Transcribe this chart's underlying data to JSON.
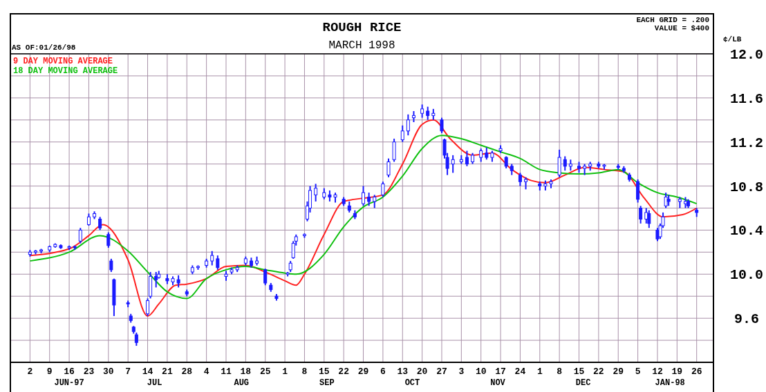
{
  "chart_data": {
    "type": "candlestick",
    "title": "ROUGH RICE",
    "subtitle": "MARCH 1998",
    "ylabel": "¢/LB",
    "color": "#1a1aff",
    "annotations": [
      "AS OF:01/26/98",
      "EACH GRID = .200",
      "VALUE = $400",
      "JUN-97",
      "JUL",
      "AUG",
      "SEP",
      "OCT",
      "NOV",
      "DEC",
      "JAN-98"
    ],
    "x": [
      "1997-06-02",
      "1997-06-04",
      "1997-06-06",
      "1997-06-09",
      "1997-06-11",
      "1997-06-13",
      "1997-06-16",
      "1997-06-18",
      "1997-06-20",
      "1997-06-23",
      "1997-06-25",
      "1997-06-27",
      "1997-06-30",
      "1997-07-01",
      "1997-07-02",
      "1997-07-07",
      "1997-07-08",
      "1997-07-09",
      "1997-07-10",
      "1997-07-14",
      "1997-07-15",
      "1997-07-17",
      "1997-07-18",
      "1997-07-21",
      "1997-07-23",
      "1997-07-25",
      "1997-07-28",
      "1997-07-30",
      "1997-08-01",
      "1997-08-04",
      "1997-08-06",
      "1997-08-08",
      "1997-08-11",
      "1997-08-13",
      "1997-08-15",
      "1997-08-18",
      "1997-08-20",
      "1997-08-22",
      "1997-08-25",
      "1997-08-27",
      "1997-08-29",
      "1997-09-02",
      "1997-09-03",
      "1997-09-04",
      "1997-09-05",
      "1997-09-08",
      "1997-09-09",
      "1997-09-10",
      "1997-09-12",
      "1997-09-15",
      "1997-09-17",
      "1997-09-19",
      "1997-09-22",
      "1997-09-24",
      "1997-09-26",
      "1997-09-29",
      "1997-10-01",
      "1997-10-03",
      "1997-10-06",
      "1997-10-08",
      "1997-10-10",
      "1997-10-13",
      "1997-10-15",
      "1997-10-17",
      "1997-10-20",
      "1997-10-22",
      "1997-10-24",
      "1997-10-27",
      "1997-10-28",
      "1997-10-29",
      "1997-10-31",
      "1997-11-03",
      "1997-11-05",
      "1997-11-07",
      "1997-11-10",
      "1997-11-12",
      "1997-11-14",
      "1997-11-17",
      "1997-11-19",
      "1997-11-21",
      "1997-11-24",
      "1997-11-26",
      "1997-12-01",
      "1997-12-03",
      "1997-12-05",
      "1997-12-08",
      "1997-12-10",
      "1997-12-12",
      "1997-12-15",
      "1997-12-17",
      "1997-12-19",
      "1997-12-22",
      "1997-12-24",
      "1997-12-29",
      "1997-12-31",
      "1998-01-02",
      "1998-01-05",
      "1998-01-06",
      "1998-01-08",
      "1998-01-09",
      "1998-01-12",
      "1998-01-13",
      "1998-01-14",
      "1998-01-15",
      "1998-01-16",
      "1998-01-20",
      "1998-01-22",
      "1998-01-23",
      "1998-01-26"
    ],
    "ohlc": [
      [
        10.18,
        10.22,
        10.16,
        10.2
      ],
      [
        10.2,
        10.22,
        10.18,
        10.21
      ],
      [
        10.21,
        10.23,
        10.19,
        10.22
      ],
      [
        10.22,
        10.26,
        10.2,
        10.25
      ],
      [
        10.25,
        10.28,
        10.24,
        10.27
      ],
      [
        10.26,
        10.27,
        10.23,
        10.24
      ],
      [
        10.24,
        10.26,
        10.22,
        10.25
      ],
      [
        10.25,
        10.26,
        10.22,
        10.24
      ],
      [
        10.3,
        10.42,
        10.28,
        10.4
      ],
      [
        10.45,
        10.55,
        10.44,
        10.52
      ],
      [
        10.52,
        10.57,
        10.5,
        10.55
      ],
      [
        10.5,
        10.52,
        10.4,
        10.42
      ],
      [
        10.36,
        10.38,
        10.24,
        10.26
      ],
      [
        10.12,
        10.14,
        10.02,
        10.04
      ],
      [
        9.95,
        9.96,
        9.62,
        9.72
      ],
      [
        9.74,
        9.76,
        9.7,
        9.73
      ],
      [
        9.62,
        9.64,
        9.56,
        9.58
      ],
      [
        9.52,
        9.53,
        9.46,
        9.48
      ],
      [
        9.45,
        9.47,
        9.35,
        9.38
      ],
      [
        9.64,
        9.78,
        9.62,
        9.76
      ],
      [
        9.8,
        10.02,
        9.78,
        9.98
      ],
      [
        9.98,
        10.02,
        9.88,
        9.95
      ],
      [
        9.97,
        10.03,
        9.96,
        10.0
      ],
      [
        9.96,
        10.0,
        9.91,
        9.94
      ],
      [
        9.93,
        9.98,
        9.9,
        9.96
      ],
      [
        9.95,
        9.99,
        9.88,
        9.92
      ],
      [
        9.84,
        9.86,
        9.8,
        9.82
      ],
      [
        10.02,
        10.08,
        10.0,
        10.06
      ],
      [
        10.06,
        10.08,
        10.04,
        10.07
      ],
      [
        10.08,
        10.14,
        10.06,
        10.12
      ],
      [
        10.12,
        10.21,
        10.08,
        10.17
      ],
      [
        10.14,
        10.17,
        10.04,
        10.06
      ],
      [
        9.98,
        10.03,
        9.94,
        10.0
      ],
      [
        10.02,
        10.06,
        10.0,
        10.04
      ],
      [
        10.04,
        10.08,
        10.02,
        10.06
      ],
      [
        10.1,
        10.16,
        10.08,
        10.14
      ],
      [
        10.12,
        10.15,
        10.06,
        10.08
      ],
      [
        10.1,
        10.16,
        10.08,
        10.12
      ],
      [
        10.04,
        10.05,
        9.9,
        9.92
      ],
      [
        9.9,
        9.92,
        9.84,
        9.86
      ],
      [
        9.8,
        9.82,
        9.76,
        9.78
      ],
      [
        10.0,
        10.02,
        9.98,
        10.01
      ],
      [
        10.04,
        10.12,
        10.02,
        10.1
      ],
      [
        10.15,
        10.3,
        10.14,
        10.28
      ],
      [
        10.3,
        10.36,
        10.26,
        10.34
      ],
      [
        10.35,
        10.37,
        10.33,
        10.36
      ],
      [
        10.5,
        10.66,
        10.48,
        10.62
      ],
      [
        10.6,
        10.8,
        10.56,
        10.76
      ],
      [
        10.72,
        10.82,
        10.66,
        10.78
      ],
      [
        10.7,
        10.78,
        10.68,
        10.74
      ],
      [
        10.72,
        10.76,
        10.66,
        10.7
      ],
      [
        10.7,
        10.74,
        10.65,
        10.72
      ],
      [
        10.68,
        10.7,
        10.62,
        10.64
      ],
      [
        10.62,
        10.66,
        10.56,
        10.58
      ],
      [
        10.55,
        10.58,
        10.5,
        10.52
      ],
      [
        10.64,
        10.8,
        10.62,
        10.74
      ],
      [
        10.7,
        10.74,
        10.62,
        10.66
      ],
      [
        10.66,
        10.72,
        10.6,
        10.7
      ],
      [
        10.72,
        10.84,
        10.7,
        10.82
      ],
      [
        10.9,
        11.05,
        10.88,
        11.02
      ],
      [
        11.04,
        11.23,
        11.02,
        11.2
      ],
      [
        11.22,
        11.35,
        11.2,
        11.3
      ],
      [
        11.3,
        11.45,
        11.26,
        11.4
      ],
      [
        11.42,
        11.48,
        11.38,
        11.44
      ],
      [
        11.46,
        11.54,
        11.42,
        11.5
      ],
      [
        11.48,
        11.52,
        11.4,
        11.44
      ],
      [
        11.44,
        11.5,
        11.4,
        11.46
      ],
      [
        11.4,
        11.42,
        11.28,
        11.3
      ],
      [
        11.22,
        11.23,
        11.05,
        11.08
      ],
      [
        11.06,
        11.1,
        10.9,
        10.96
      ],
      [
        11.0,
        11.08,
        10.92,
        11.04
      ],
      [
        11.02,
        11.08,
        11.0,
        11.04
      ],
      [
        11.06,
        11.12,
        10.98,
        11.0
      ],
      [
        11.02,
        11.1,
        11.0,
        11.08
      ],
      [
        11.06,
        11.14,
        11.02,
        11.12
      ],
      [
        11.1,
        11.15,
        11.04,
        11.06
      ],
      [
        11.06,
        11.12,
        11.02,
        11.1
      ],
      [
        11.12,
        11.17,
        11.1,
        11.14
      ],
      [
        11.06,
        11.07,
        10.96,
        10.98
      ],
      [
        10.98,
        11.0,
        10.9,
        10.94
      ],
      [
        10.9,
        10.92,
        10.8,
        10.84
      ],
      [
        10.84,
        10.88,
        10.77,
        10.86
      ],
      [
        10.82,
        10.84,
        10.76,
        10.8
      ],
      [
        10.8,
        10.85,
        10.76,
        10.82
      ],
      [
        10.82,
        10.86,
        10.78,
        10.84
      ],
      [
        10.9,
        11.13,
        10.88,
        11.06
      ],
      [
        11.04,
        11.07,
        10.94,
        10.98
      ],
      [
        10.98,
        11.04,
        10.94,
        11.0
      ],
      [
        10.98,
        11.02,
        10.92,
        10.96
      ],
      [
        10.96,
        11.0,
        10.9,
        10.98
      ],
      [
        10.98,
        11.02,
        10.94,
        11.0
      ],
      [
        11.0,
        11.02,
        10.96,
        10.98
      ],
      [
        10.98,
        11.0,
        10.95,
        10.99
      ],
      [
        10.98,
        11.0,
        10.95,
        10.97
      ],
      [
        10.96,
        10.98,
        10.92,
        10.94
      ],
      [
        10.9,
        10.92,
        10.84,
        10.86
      ],
      [
        10.84,
        10.86,
        10.65,
        10.68
      ],
      [
        10.6,
        10.62,
        10.46,
        10.5
      ],
      [
        10.5,
        10.6,
        10.46,
        10.56
      ],
      [
        10.55,
        10.58,
        10.42,
        10.46
      ],
      [
        10.4,
        10.42,
        10.3,
        10.32
      ],
      [
        10.34,
        10.46,
        10.32,
        10.44
      ],
      [
        10.44,
        10.56,
        10.42,
        10.52
      ],
      [
        10.62,
        10.74,
        10.6,
        10.7
      ],
      [
        10.68,
        10.72,
        10.62,
        10.66
      ],
      [
        10.66,
        10.7,
        10.6,
        10.68
      ],
      [
        10.64,
        10.7,
        10.6,
        10.66
      ],
      [
        10.66,
        10.68,
        10.6,
        10.62
      ],
      [
        10.58,
        10.6,
        10.52,
        10.56
      ]
    ],
    "series": [
      {
        "type": "line",
        "name": "9 DAY MOVING AVERAGE",
        "color": "#ff2020",
        "x": [
          "1997-06-02",
          "1997-06-16",
          "1997-06-23",
          "1997-06-28",
          "1997-07-07",
          "1997-07-14",
          "1997-07-18",
          "1997-07-24",
          "1997-07-28",
          "1997-08-04",
          "1997-08-11",
          "1997-08-18",
          "1997-08-25",
          "1997-09-01",
          "1997-09-05",
          "1997-09-08",
          "1997-09-15",
          "1997-09-22",
          "1997-09-29",
          "1997-10-06",
          "1997-10-13",
          "1997-10-20",
          "1997-10-24",
          "1997-10-30",
          "1997-11-07",
          "1997-11-14",
          "1997-11-21",
          "1997-11-28",
          "1997-12-03",
          "1997-12-10",
          "1997-12-17",
          "1997-12-24",
          "1997-12-31",
          "1998-01-07",
          "1998-01-14",
          "1998-01-21",
          "1998-01-26"
        ],
        "values": [
          10.17,
          10.23,
          10.35,
          10.45,
          10.13,
          9.62,
          9.73,
          9.9,
          9.91,
          9.96,
          10.07,
          10.08,
          10.02,
          9.94,
          9.9,
          10.0,
          10.36,
          10.66,
          10.69,
          10.72,
          11.0,
          11.36,
          11.4,
          11.23,
          11.08,
          11.1,
          10.95,
          10.85,
          10.83,
          10.9,
          10.97,
          10.95,
          10.93,
          10.7,
          10.52,
          10.54,
          10.6
        ]
      },
      {
        "type": "line",
        "name": "18 DAY MOVING AVERAGE",
        "color": "#10c010",
        "x": [
          "1997-06-02",
          "1997-06-16",
          "1997-06-27",
          "1997-07-07",
          "1997-07-14",
          "1997-07-21",
          "1997-07-28",
          "1997-08-04",
          "1997-08-11",
          "1997-08-18",
          "1997-08-25",
          "1997-09-01",
          "1997-09-05",
          "1997-09-15",
          "1997-09-22",
          "1997-09-29",
          "1997-10-06",
          "1997-10-13",
          "1997-10-20",
          "1997-10-27",
          "1997-11-03",
          "1997-11-10",
          "1997-11-17",
          "1997-11-24",
          "1997-12-01",
          "1997-12-08",
          "1997-12-15",
          "1997-12-22",
          "1997-12-29",
          "1998-01-05",
          "1998-01-12",
          "1998-01-19",
          "1998-01-26"
        ],
        "values": [
          10.12,
          10.2,
          10.35,
          10.21,
          10.02,
          9.84,
          9.78,
          9.96,
          10.04,
          10.07,
          10.04,
          10.01,
          10.0,
          10.18,
          10.43,
          10.61,
          10.7,
          10.89,
          11.14,
          11.26,
          11.23,
          11.17,
          11.11,
          11.05,
          10.95,
          10.92,
          10.91,
          10.92,
          10.95,
          10.83,
          10.74,
          10.7,
          10.64
        ]
      }
    ],
    "xlim": [
      "1997-05-26",
      "1998-02-01"
    ],
    "xticks": [
      {
        "value": "1997-06-02",
        "label": "2"
      },
      {
        "value": "1997-06-09",
        "label": "9"
      },
      {
        "value": "1997-06-16",
        "label": "16"
      },
      {
        "value": "1997-06-23",
        "label": "23"
      },
      {
        "value": "1997-06-30",
        "label": "30"
      },
      {
        "value": "1997-07-07",
        "label": "7"
      },
      {
        "value": "1997-07-14",
        "label": "14"
      },
      {
        "value": "1997-07-21",
        "label": "21"
      },
      {
        "value": "1997-07-28",
        "label": "28"
      },
      {
        "value": "1997-08-04",
        "label": "4"
      },
      {
        "value": "1997-08-11",
        "label": "11"
      },
      {
        "value": "1997-08-18",
        "label": "18"
      },
      {
        "value": "1997-08-25",
        "label": "25"
      },
      {
        "value": "1997-09-01",
        "label": "1"
      },
      {
        "value": "1997-09-08",
        "label": "8"
      },
      {
        "value": "1997-09-15",
        "label": "15"
      },
      {
        "value": "1997-09-22",
        "label": "22"
      },
      {
        "value": "1997-09-29",
        "label": "29"
      },
      {
        "value": "1997-10-06",
        "label": "6"
      },
      {
        "value": "1997-10-13",
        "label": "13"
      },
      {
        "value": "1997-10-20",
        "label": "20"
      },
      {
        "value": "1997-10-27",
        "label": "27"
      },
      {
        "value": "1997-11-03",
        "label": "3"
      },
      {
        "value": "1997-11-10",
        "label": "10"
      },
      {
        "value": "1997-11-17",
        "label": "17"
      },
      {
        "value": "1997-11-24",
        "label": "24"
      },
      {
        "value": "1997-12-01",
        "label": "1"
      },
      {
        "value": "1997-12-08",
        "label": "8"
      },
      {
        "value": "1997-12-15",
        "label": "15"
      },
      {
        "value": "1997-12-22",
        "label": "22"
      },
      {
        "value": "1997-12-29",
        "label": "29"
      },
      {
        "value": "1998-01-05",
        "label": "5"
      },
      {
        "value": "1998-01-12",
        "label": "12"
      },
      {
        "value": "1998-01-19",
        "label": "19"
      },
      {
        "value": "1998-01-26",
        "label": "26"
      }
    ],
    "ylim": [
      9.2,
      12.0
    ],
    "yticks": [
      {
        "value": 9.2,
        "label": null
      },
      {
        "value": 9.4,
        "label": null
      },
      9.6,
      {
        "value": 9.8,
        "label": null
      },
      {
        "value": 10.0,
        "label": "10.0"
      },
      {
        "value": 10.2,
        "label": null
      },
      10.4,
      {
        "value": 10.6,
        "label": null
      },
      10.8,
      {
        "value": 11.0,
        "label": null
      },
      11.2,
      {
        "value": 11.4,
        "label": null
      },
      11.6,
      {
        "value": 11.8,
        "label": null
      },
      {
        "value": 12.0,
        "label": "12.0"
      }
    ],
    "grid": true,
    "legend": "top left"
  }
}
